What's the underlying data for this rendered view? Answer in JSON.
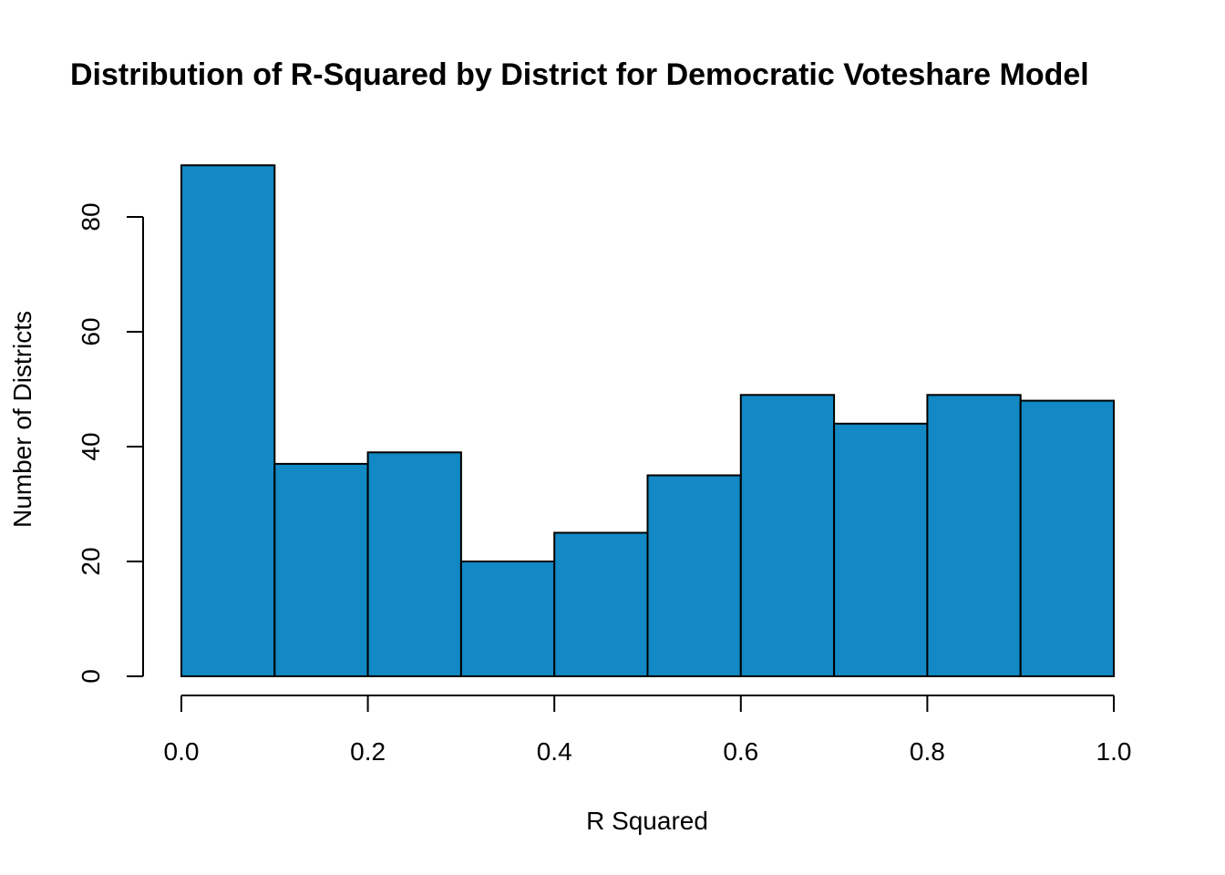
{
  "chart_data": {
    "type": "bar",
    "title": "Distribution of R-Squared by District for Democratic Voteshare Model",
    "xlabel": "R Squared",
    "ylabel": "Number of Districts",
    "bins": [
      {
        "from": 0.0,
        "to": 0.1,
        "count": 89
      },
      {
        "from": 0.1,
        "to": 0.2,
        "count": 37
      },
      {
        "from": 0.2,
        "to": 0.3,
        "count": 39
      },
      {
        "from": 0.3,
        "to": 0.4,
        "count": 20
      },
      {
        "from": 0.4,
        "to": 0.5,
        "count": 25
      },
      {
        "from": 0.5,
        "to": 0.6,
        "count": 35
      },
      {
        "from": 0.6,
        "to": 0.7,
        "count": 49
      },
      {
        "from": 0.7,
        "to": 0.8,
        "count": 44
      },
      {
        "from": 0.8,
        "to": 0.9,
        "count": 49
      },
      {
        "from": 0.9,
        "to": 1.0,
        "count": 48
      }
    ],
    "xlim": [
      0.0,
      1.0
    ],
    "ylim": [
      0,
      89
    ],
    "x_ticks": [
      "0.0",
      "0.2",
      "0.4",
      "0.6",
      "0.8",
      "1.0"
    ],
    "y_ticks": [
      "0",
      "20",
      "40",
      "60",
      "80"
    ],
    "grid": false,
    "legend": "none",
    "bar_color": "#1288C4",
    "edge_color": "#000000"
  }
}
